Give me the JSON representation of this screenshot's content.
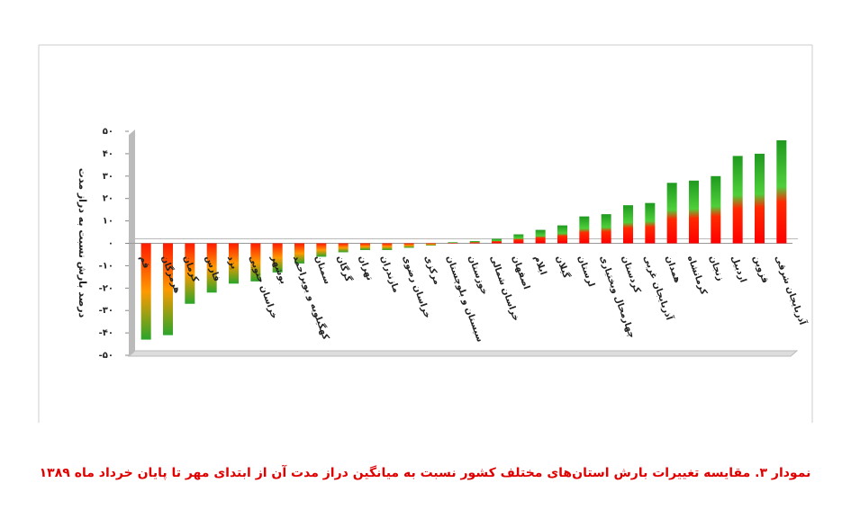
{
  "chart_data": {
    "type": "bar",
    "caption": "نمودار ۳. مقایسه تغییرات بارش استان‌های مختلف کشور نسبت به میانگین دراز مدت آن از ابتدای مهر تا پایان خرداد ماه ۱۳۸۹",
    "y_label": "درصد بارش نسبت به دراز مدت",
    "categories": [
      "قم",
      "هرمزگان",
      "کرمان",
      "فارس",
      "یزد",
      "خراسان جنوبی",
      "بوشهر",
      "کهگیلویه و بویراحمد",
      "سمنان",
      "گرگان",
      "تهران",
      "مازندران",
      "خراسان رضوی",
      "مرکزی",
      "سیستان و بلوچستان",
      "خوزستان",
      "خراسان شمالی",
      "اصفهان",
      "ایلام",
      "گیلان",
      "لرستان",
      "چهارمحال وبختیاری",
      "کردستان",
      "آذربایجان غربی",
      "همدان",
      "کرمانشاه",
      "زنجان",
      "اردبیل",
      "قزوین",
      "آذربایجان شرقی"
    ],
    "values": [
      -43,
      -41,
      -27,
      -22,
      -18,
      -17,
      -13,
      -9,
      -6,
      -4,
      -3,
      -3,
      -2,
      -1,
      0.5,
      1,
      2,
      4,
      6,
      8,
      12,
      13,
      17,
      18,
      27,
      28,
      30,
      39,
      40,
      46
    ],
    "ylim": [
      -50,
      50
    ],
    "yticks": [
      {
        "value": -50,
        "label": "-۵۰"
      },
      {
        "value": -40,
        "label": "-۴۰"
      },
      {
        "value": -30,
        "label": "-۳۰"
      },
      {
        "value": -20,
        "label": "-۲۰"
      },
      {
        "value": -10,
        "label": "-۱۰"
      },
      {
        "value": 0,
        "label": "۰"
      },
      {
        "value": 10,
        "label": "۱۰"
      },
      {
        "value": 20,
        "label": "۲۰"
      },
      {
        "value": 30,
        "label": "۳۰"
      },
      {
        "value": 40,
        "label": "۴۰"
      },
      {
        "value": 50,
        "label": "۵۰"
      }
    ],
    "grid": false
  }
}
